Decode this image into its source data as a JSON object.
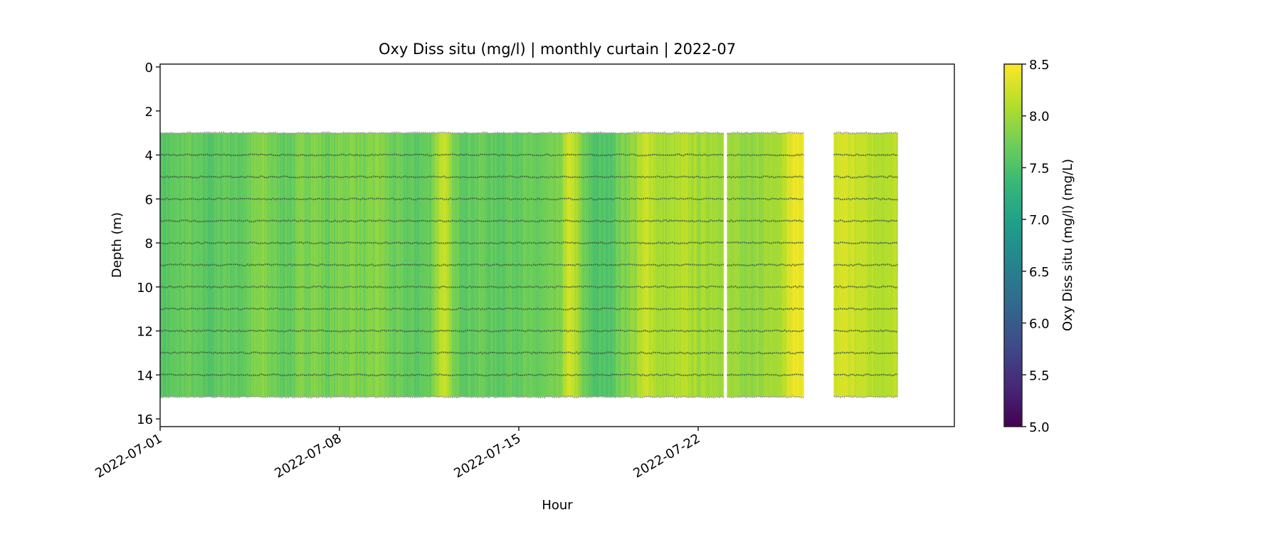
{
  "chart_data": {
    "type": "heatmap",
    "title": "Oxy Diss situ (mg/l) | monthly curtain | 2022-07",
    "xlabel": "Hour",
    "ylabel": "Depth (m)",
    "colorbar_label": "Oxy Diss situ (mg/l) (mg/L)",
    "colormap": "viridis",
    "clim": [
      5.0,
      8.5
    ],
    "xlim": [
      "2022-07-01",
      "2022-08-01"
    ],
    "ylim": [
      16.35,
      -0.13
    ],
    "x_ticks": [
      {
        "date": "2022-07-01",
        "label": "2022-07-01"
      },
      {
        "date": "2022-07-08",
        "label": "2022-07-08"
      },
      {
        "date": "2022-07-15",
        "label": "2022-07-15"
      },
      {
        "date": "2022-07-22",
        "label": "2022-07-22"
      }
    ],
    "y_ticks": [
      {
        "value": 0,
        "label": "0"
      },
      {
        "value": 2,
        "label": "2"
      },
      {
        "value": 4,
        "label": "4"
      },
      {
        "value": 6,
        "label": "6"
      },
      {
        "value": 8,
        "label": "8"
      },
      {
        "value": 10,
        "label": "10"
      },
      {
        "value": 12,
        "label": "12"
      },
      {
        "value": 14,
        "label": "14"
      },
      {
        "value": 16,
        "label": "16"
      }
    ],
    "colorbar_ticks": [
      {
        "value": 5.0,
        "label": "5.0"
      },
      {
        "value": 5.5,
        "label": "5.5"
      },
      {
        "value": 6.0,
        "label": "6.0"
      },
      {
        "value": 6.5,
        "label": "6.5"
      },
      {
        "value": 7.0,
        "label": "7.0"
      },
      {
        "value": 7.5,
        "label": "7.5"
      },
      {
        "value": 8.0,
        "label": "8.0"
      },
      {
        "value": 8.5,
        "label": "8.5"
      }
    ],
    "sensor_depths": [
      3,
      4,
      5,
      6,
      7,
      8,
      9,
      10,
      11,
      12,
      13,
      14,
      15
    ],
    "depth_range": [
      3,
      15
    ],
    "segments": [
      {
        "start": "2022-07-01T00:00",
        "step_hours": 12,
        "values": [
          7.55,
          7.6,
          7.7,
          7.6,
          7.55,
          7.7,
          7.6,
          7.75,
          7.85,
          7.7,
          7.65,
          7.8,
          7.85,
          7.7,
          7.8,
          7.85,
          7.75,
          7.9,
          7.7,
          7.65,
          7.6,
          7.7,
          8.25,
          7.7,
          7.65,
          7.7,
          7.6,
          7.65,
          7.7,
          7.65,
          7.7,
          7.75,
          8.3,
          7.7,
          7.5,
          7.55,
          7.8,
          7.95,
          8.25,
          8.0,
          8.05,
          8.1,
          8.0,
          8.05
        ]
      },
      {
        "start": "2022-07-23T03:00",
        "step_hours": 12,
        "values": [
          8.0,
          7.95,
          7.95,
          8.0,
          8.05,
          8.4
        ]
      },
      {
        "start": "2022-07-27T07:00",
        "step_hours": 12,
        "values": [
          8.3,
          8.25,
          8.2,
          8.15,
          8.1
        ]
      }
    ]
  }
}
